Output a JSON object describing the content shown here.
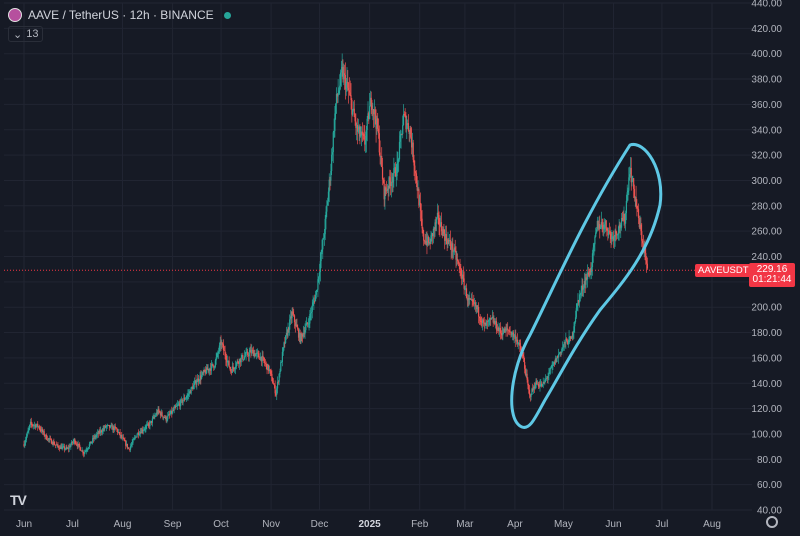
{
  "header": {
    "title": "AAVE / TetherUS · 12h · BINANCE",
    "indicator_count": "13"
  },
  "branding": {
    "logo_text": "TV"
  },
  "price": {
    "symbol_tag": "AAVEUSDT",
    "last": "229.16",
    "countdown": "01:21:44",
    "last_value": 229.16
  },
  "colors": {
    "up": "#26a69a",
    "down": "#ef5350",
    "accent": "#f23645",
    "annotation": "#5ec8e5",
    "grid": "#212532",
    "bg": "#161a25",
    "text": "#b2b5be"
  },
  "chart_data": {
    "type": "candlestick",
    "ylim": [
      40,
      440
    ],
    "y_ticks": [
      40,
      60,
      80,
      100,
      120,
      140,
      160,
      180,
      200,
      220,
      240,
      260,
      280,
      300,
      320,
      340,
      360,
      380,
      400,
      420,
      440
    ],
    "x_labels": [
      "Jun",
      "Jul",
      "Aug",
      "Sep",
      "Oct",
      "Nov",
      "Dec",
      "2025",
      "Feb",
      "Mar",
      "Apr",
      "May",
      "Jun",
      "Jul",
      "Aug"
    ],
    "price_path": [
      [
        "2024-06-01",
        92
      ],
      [
        "2024-06-05",
        108
      ],
      [
        "2024-06-10",
        106
      ],
      [
        "2024-06-15",
        97
      ],
      [
        "2024-06-22",
        90
      ],
      [
        "2024-06-28",
        88
      ],
      [
        "2024-07-02",
        95
      ],
      [
        "2024-07-08",
        85
      ],
      [
        "2024-07-15",
        98
      ],
      [
        "2024-07-22",
        106
      ],
      [
        "2024-07-28",
        104
      ],
      [
        "2024-08-05",
        88
      ],
      [
        "2024-08-10",
        100
      ],
      [
        "2024-08-18",
        108
      ],
      [
        "2024-08-23",
        118
      ],
      [
        "2024-08-28",
        112
      ],
      [
        "2024-09-04",
        122
      ],
      [
        "2024-09-10",
        130
      ],
      [
        "2024-09-16",
        142
      ],
      [
        "2024-09-22",
        150
      ],
      [
        "2024-09-27",
        155
      ],
      [
        "2024-10-01",
        172
      ],
      [
        "2024-10-07",
        150
      ],
      [
        "2024-10-12",
        158
      ],
      [
        "2024-10-20",
        165
      ],
      [
        "2024-10-26",
        160
      ],
      [
        "2024-10-31",
        150
      ],
      [
        "2024-11-04",
        132
      ],
      [
        "2024-11-09",
        170
      ],
      [
        "2024-11-14",
        195
      ],
      [
        "2024-11-19",
        175
      ],
      [
        "2024-11-24",
        188
      ],
      [
        "2024-11-29",
        212
      ],
      [
        "2024-12-04",
        260
      ],
      [
        "2024-12-08",
        310
      ],
      [
        "2024-12-11",
        360
      ],
      [
        "2024-12-15",
        385
      ],
      [
        "2024-12-19",
        370
      ],
      [
        "2024-12-24",
        340
      ],
      [
        "2024-12-29",
        330
      ],
      [
        "2025-01-02",
        365
      ],
      [
        "2025-01-06",
        340
      ],
      [
        "2025-01-10",
        290
      ],
      [
        "2025-01-14",
        300
      ],
      [
        "2025-01-18",
        310
      ],
      [
        "2025-01-22",
        350
      ],
      [
        "2025-01-26",
        340
      ],
      [
        "2025-01-31",
        290
      ],
      [
        "2025-02-03",
        255
      ],
      [
        "2025-02-07",
        250
      ],
      [
        "2025-02-12",
        270
      ],
      [
        "2025-02-17",
        255
      ],
      [
        "2025-02-22",
        245
      ],
      [
        "2025-02-27",
        225
      ],
      [
        "2025-03-03",
        205
      ],
      [
        "2025-03-08",
        200
      ],
      [
        "2025-03-13",
        185
      ],
      [
        "2025-03-18",
        190
      ],
      [
        "2025-03-23",
        180
      ],
      [
        "2025-03-28",
        182
      ],
      [
        "2025-04-02",
        175
      ],
      [
        "2025-04-06",
        160
      ],
      [
        "2025-04-10",
        130
      ],
      [
        "2025-04-14",
        140
      ],
      [
        "2025-04-18",
        138
      ],
      [
        "2025-04-23",
        150
      ],
      [
        "2025-04-27",
        160
      ],
      [
        "2025-05-02",
        172
      ],
      [
        "2025-05-06",
        175
      ],
      [
        "2025-05-10",
        205
      ],
      [
        "2025-05-14",
        220
      ],
      [
        "2025-05-18",
        230
      ],
      [
        "2025-05-22",
        265
      ],
      [
        "2025-05-27",
        265
      ],
      [
        "2025-05-31",
        255
      ],
      [
        "2025-06-04",
        262
      ],
      [
        "2025-06-08",
        270
      ],
      [
        "2025-06-11",
        310
      ],
      [
        "2025-06-14",
        290
      ],
      [
        "2025-06-17",
        265
      ],
      [
        "2025-06-20",
        245
      ],
      [
        "2025-06-22",
        229
      ]
    ]
  }
}
